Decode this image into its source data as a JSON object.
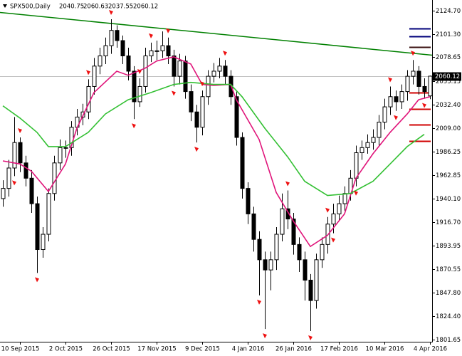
{
  "chart_data": {
    "type": "candlestick",
    "symbol": "SPX500,Daily",
    "xlim": [
      -0.5,
      75.375
    ],
    "xticks": [
      {
        "value": 3,
        "label": "10 Sep 2015"
      },
      {
        "value": 11,
        "label": "2 Oct 2015"
      },
      {
        "value": 19,
        "label": "26 Oct 2015"
      },
      {
        "value": 27,
        "label": "17 Nov 2015"
      },
      {
        "value": 35,
        "label": "9 Dec 2015"
      },
      {
        "value": 43,
        "label": "4 Jan 2016"
      },
      {
        "value": 51,
        "label": "26 Jan 2016"
      },
      {
        "value": 59,
        "label": "17 Feb 2016"
      },
      {
        "value": 67,
        "label": "10 Mar 2016"
      },
      {
        "value": 75,
        "label": "4 Apr 2016"
      }
    ],
    "ylim": [
      1799.55,
      2134.83
    ],
    "yticks": [
      {
        "value": 2124.7,
        "label": "2124.70"
      },
      {
        "value": 2101.3,
        "label": "2101.30"
      },
      2078.65,
      2055.15,
      {
        "value": 2032.4,
        "label": "2032.40"
      },
      {
        "value": 2009,
        "label": "2009.00"
      },
      1986.25,
      1962.85,
      {
        "value": 1940.1,
        "label": "1940.10"
      },
      {
        "value": 1916.7,
        "label": "1916.70"
      },
      1893.95,
      1870.55,
      {
        "value": 1847.8,
        "label": "1847.80"
      },
      {
        "value": 1824.4,
        "label": "1824.40"
      },
      1801.65
    ],
    "open": [
      1940,
      1950,
      1970,
      1995,
      1975,
      1960,
      1935,
      1890,
      1905,
      1945,
      1975,
      1990,
      1990,
      2010,
      2020,
      2025,
      2050,
      2070,
      2080,
      2090,
      2105,
      2095,
      2080,
      2065,
      2035,
      2050,
      2080,
      2085,
      2085,
      2090,
      2080,
      2060,
      2075,
      2045,
      2025,
      2010,
      2040,
      2060,
      2065,
      2070,
      2060,
      2040,
      2000,
      1950,
      1925,
      1900,
      1880,
      1870,
      1880,
      1905,
      1930,
      1920,
      1895,
      1880,
      1860,
      1840,
      1880,
      1895,
      1915,
      1925,
      1935,
      1945,
      1960,
      1985,
      1990,
      1995,
      2000,
      2015,
      2030,
      2040,
      2035,
      2045,
      2060,
      2065,
      2050,
      2040.75
    ],
    "high": [
      1958,
      1978,
      2020,
      2000,
      1982,
      1968,
      1942,
      1912,
      1950,
      1982,
      1998,
      1997,
      2016,
      2028,
      2033,
      2057,
      2078,
      2088,
      2098,
      2116,
      2110,
      2100,
      2088,
      2070,
      2058,
      2088,
      2093,
      2095,
      2104,
      2098,
      2086,
      2082,
      2080,
      2052,
      2032,
      2046,
      2066,
      2073,
      2078,
      2076,
      2066,
      2046,
      2005,
      1956,
      1932,
      1908,
      1888,
      1888,
      1912,
      1945,
      1948,
      1926,
      1902,
      1888,
      1866,
      1886,
      1902,
      1922,
      1935,
      1943,
      1952,
      1968,
      1992,
      1997,
      2003,
      2008,
      2022,
      2038,
      2050,
      2046,
      2052,
      2066,
      2076,
      2070,
      2058,
      2060.63
    ],
    "low": [
      1932,
      1942,
      1962,
      1966,
      1952,
      1926,
      1867,
      1882,
      1898,
      1938,
      1968,
      1980,
      1982,
      2002,
      2012,
      2018,
      2042,
      2062,
      2072,
      2082,
      2088,
      2072,
      2056,
      2018,
      2030,
      2044,
      2074,
      2076,
      2078,
      2072,
      2050,
      2052,
      2038,
      2016,
      1995,
      2002,
      2032,
      2054,
      2058,
      2052,
      2032,
      1992,
      1940,
      1915,
      1888,
      1845,
      1812,
      1850,
      1870,
      1898,
      1910,
      1885,
      1868,
      1840,
      1810,
      1832,
      1872,
      1886,
      1906,
      1918,
      1928,
      1938,
      1952,
      1978,
      1984,
      1988,
      1992,
      2008,
      2022,
      2026,
      2028,
      2036,
      2052,
      2042,
      2038,
      2037.55
    ],
    "close": [
      1950,
      1970,
      1995,
      1975,
      1960,
      1935,
      1890,
      1905,
      1945,
      1975,
      1990,
      1990,
      2010,
      2020,
      2025,
      2050,
      2070,
      2080,
      2090,
      2105,
      2095,
      2080,
      2065,
      2035,
      2050,
      2080,
      2085,
      2085,
      2090,
      2080,
      2060,
      2075,
      2045,
      2025,
      2010,
      2040,
      2060,
      2065,
      2070,
      2060,
      2040,
      2000,
      1950,
      1925,
      1900,
      1880,
      1870,
      1880,
      1905,
      1930,
      1920,
      1895,
      1880,
      1860,
      1840,
      1880,
      1895,
      1915,
      1925,
      1935,
      1945,
      1960,
      1985,
      1990,
      1995,
      2000,
      2015,
      2030,
      2040,
      2035,
      2045,
      2060,
      2065,
      2050,
      2045,
      2060.12
    ],
    "fast_ma": {
      "color": "#e0147a",
      "x": [
        0,
        3,
        5,
        8,
        11,
        13,
        16,
        20,
        22,
        25,
        27,
        30,
        33,
        35,
        37,
        40,
        41,
        45,
        48,
        51,
        54,
        57,
        60,
        62,
        65,
        68,
        71,
        73,
        75
      ],
      "values": [
        1977,
        1974,
        1967,
        1947,
        1974,
        2009,
        2044,
        2065,
        2061,
        2068,
        2075,
        2079,
        2072,
        2052,
        2051,
        2052,
        2037,
        1998,
        1946,
        1918,
        1893,
        1904,
        1925,
        1960,
        1984,
        2005,
        2023,
        2037,
        2040
      ]
    },
    "slow_ma": {
      "color": "#33c033",
      "x": [
        0,
        3,
        6,
        8,
        11,
        15,
        18,
        22,
        26,
        30,
        33,
        37,
        40,
        42,
        46,
        50,
        53,
        57,
        61,
        65,
        68,
        71,
        74
      ],
      "values": [
        2031,
        2019,
        2005,
        1991,
        1991,
        2005,
        2023,
        2037,
        2044,
        2052,
        2054,
        2052,
        2052,
        2040,
        2009,
        1981,
        1957,
        1943,
        1945,
        1957,
        1974,
        1991,
        2003
      ]
    },
    "trendline": {
      "color": "#008000",
      "x": [
        -0.5,
        75.375
      ],
      "values": [
        2122.6,
        2080.7
      ]
    },
    "fractals": {
      "color": "#ee1111",
      "above": [
        3,
        15,
        19,
        24,
        26,
        29,
        35,
        39,
        50,
        57,
        68,
        72
      ],
      "below": [
        2,
        6,
        23,
        30,
        34,
        45,
        46,
        54,
        58,
        62,
        69,
        74
      ]
    },
    "levels": [
      {
        "value": 2106.6,
        "color": "#00007a"
      },
      {
        "value": 2098.9,
        "color": "#00007a"
      },
      {
        "value": 2088.4,
        "color": "#3a1010"
      },
      {
        "value": 2043.8,
        "color": "#d00000"
      },
      {
        "value": 2027.7,
        "color": "#d00000"
      },
      {
        "value": 2012.4,
        "color": "#d00000"
      },
      {
        "value": 1996.3,
        "color": "#d00000"
      }
    ]
  }
}
